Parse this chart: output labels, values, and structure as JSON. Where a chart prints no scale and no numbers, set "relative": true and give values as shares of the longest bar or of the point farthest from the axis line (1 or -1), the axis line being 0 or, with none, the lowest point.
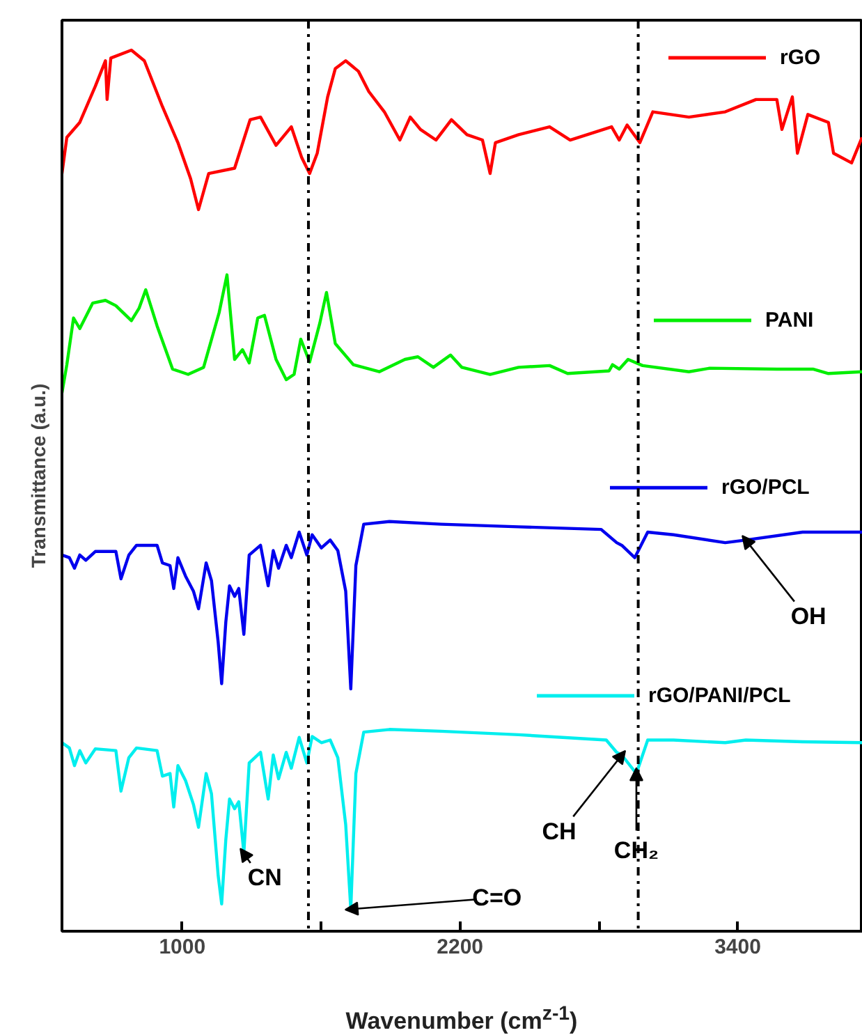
{
  "chart_data": {
    "type": "line",
    "relative": true,
    "xlabel": "Wavenumber (cm$^{z-1}$)",
    "ylabel": "Transmittance (a.u.)",
    "xlim": [
      480,
      3940
    ],
    "xticks": [
      1000,
      {
        "value": 1600,
        "label": null
      },
      2200,
      {
        "value": 2800,
        "label": null
      },
      3400
    ],
    "grid": false,
    "line_style": "solid",
    "marker": "none",
    "ref_lines": [
      {
        "axis": "x",
        "value": 1545,
        "label": null,
        "color": "#000000",
        "line_style": "dashdot"
      },
      {
        "axis": "x",
        "value": 2970,
        "label": null,
        "color": "#000000",
        "line_style": "dashdot"
      }
    ],
    "legend": "right",
    "annotations": [
      {
        "text": "CN",
        "x": 1266,
        "y": 0.089
      },
      {
        "text": "C=O",
        "x": 1728,
        "y": 0.025
      },
      {
        "text": "CH",
        "x": 2899,
        "y": 0.2
      },
      {
        "text": "CH₂",
        "x": 2962,
        "y": 0.179
      },
      {
        "text": "OH",
        "x": 3435,
        "y": 0.444
      }
    ],
    "series": [
      {
        "name": "rGO",
        "color": "#ff0000",
        "x": [
          480,
          501,
          557,
          624,
          668,
          675,
          691,
          780,
          836,
          914,
          981,
          1036,
          1070,
          1114,
          1226,
          1293,
          1338,
          1405,
          1471,
          1516,
          1550,
          1583,
          1628,
          1661,
          1706,
          1761,
          1806,
          1873,
          1940,
          1985,
          2029,
          2096,
          2163,
          2230,
          2297,
          2330,
          2353,
          2453,
          2587,
          2676,
          2855,
          2888,
          2922,
          2977,
          3033,
          3189,
          3346,
          3479,
          3569,
          3591,
          3636,
          3658,
          3703,
          3792,
          3814,
          3892,
          3937
        ],
        "values": [
          0.86,
          0.901,
          0.918,
          0.959,
          0.988,
          0.944,
          0.991,
          1.0,
          0.988,
          0.936,
          0.895,
          0.854,
          0.819,
          0.86,
          0.866,
          0.921,
          0.924,
          0.892,
          0.913,
          0.878,
          0.86,
          0.883,
          0.947,
          0.979,
          0.988,
          0.976,
          0.953,
          0.93,
          0.898,
          0.924,
          0.91,
          0.898,
          0.921,
          0.904,
          0.898,
          0.86,
          0.895,
          0.904,
          0.913,
          0.898,
          0.913,
          0.898,
          0.915,
          0.895,
          0.93,
          0.924,
          0.93,
          0.944,
          0.944,
          0.91,
          0.947,
          0.883,
          0.927,
          0.918,
          0.883,
          0.872,
          0.901
        ]
      },
      {
        "name": "PANI",
        "color": "#00ee00",
        "x": [
          480,
          501,
          530,
          557,
          613,
          668,
          713,
          780,
          813,
          842,
          891,
          958,
          1025,
          1092,
          1159,
          1193,
          1226,
          1260,
          1289,
          1326,
          1355,
          1405,
          1449,
          1483,
          1512,
          1550,
          1594,
          1623,
          1661,
          1739,
          1851,
          1962,
          2018,
          2085,
          2159,
          2208,
          2330,
          2453,
          2587,
          2665,
          2844,
          2859,
          2888,
          2926,
          2989,
          3189,
          3279,
          3569,
          3725,
          3792,
          3937
        ],
        "values": [
          0.611,
          0.643,
          0.696,
          0.684,
          0.713,
          0.716,
          0.71,
          0.693,
          0.707,
          0.728,
          0.687,
          0.638,
          0.632,
          0.64,
          0.702,
          0.745,
          0.649,
          0.66,
          0.645,
          0.696,
          0.699,
          0.649,
          0.626,
          0.632,
          0.672,
          0.646,
          0.69,
          0.725,
          0.667,
          0.643,
          0.635,
          0.649,
          0.652,
          0.64,
          0.654,
          0.64,
          0.632,
          0.64,
          0.642,
          0.633,
          0.636,
          0.643,
          0.638,
          0.649,
          0.642,
          0.635,
          0.639,
          0.638,
          0.638,
          0.633,
          0.635
        ]
      },
      {
        "name": "rGO/PCL",
        "color": "#0000ee",
        "x": [
          480,
          512,
          534,
          557,
          583,
          624,
          713,
          735,
          769,
          802,
          891,
          914,
          947,
          963,
          981,
          1014,
          1048,
          1070,
          1103,
          1126,
          1155,
          1170,
          1188,
          1204,
          1226,
          1244,
          1266,
          1289,
          1338,
          1371,
          1393,
          1416,
          1449,
          1471,
          1505,
          1538,
          1561,
          1601,
          1639,
          1672,
          1706,
          1728,
          1750,
          1784,
          1895,
          2118,
          2453,
          2810,
          2877,
          2899,
          2955,
          3011,
          3122,
          3346,
          3435,
          3680,
          3937
        ],
        "values": [
          0.427,
          0.424,
          0.412,
          0.427,
          0.421,
          0.431,
          0.431,
          0.4,
          0.427,
          0.438,
          0.438,
          0.418,
          0.415,
          0.389,
          0.424,
          0.403,
          0.386,
          0.366,
          0.418,
          0.398,
          0.328,
          0.281,
          0.351,
          0.392,
          0.38,
          0.389,
          0.337,
          0.427,
          0.438,
          0.392,
          0.432,
          0.412,
          0.438,
          0.424,
          0.453,
          0.427,
          0.45,
          0.435,
          0.444,
          0.432,
          0.386,
          0.275,
          0.415,
          0.462,
          0.465,
          0.462,
          0.459,
          0.456,
          0.441,
          0.438,
          0.424,
          0.453,
          0.45,
          0.441,
          0.444,
          0.453,
          0.453
        ]
      },
      {
        "name": "rGO/PANI/PCL",
        "color": "#00eeee",
        "x": [
          480,
          512,
          534,
          557,
          583,
          624,
          713,
          735,
          769,
          802,
          891,
          914,
          947,
          963,
          981,
          1014,
          1048,
          1070,
          1103,
          1126,
          1155,
          1170,
          1188,
          1204,
          1226,
          1244,
          1266,
          1289,
          1338,
          1371,
          1393,
          1416,
          1449,
          1471,
          1505,
          1538,
          1561,
          1601,
          1639,
          1672,
          1706,
          1728,
          1750,
          1784,
          1895,
          2118,
          2453,
          2832,
          2877,
          2899,
          2962,
          3011,
          3122,
          3346,
          3435,
          3680,
          3937
        ],
        "values": [
          0.214,
          0.208,
          0.188,
          0.205,
          0.191,
          0.207,
          0.205,
          0.159,
          0.197,
          0.208,
          0.205,
          0.176,
          0.179,
          0.141,
          0.188,
          0.171,
          0.144,
          0.118,
          0.179,
          0.156,
          0.063,
          0.031,
          0.104,
          0.15,
          0.139,
          0.147,
          0.089,
          0.191,
          0.203,
          0.15,
          0.2,
          0.173,
          0.203,
          0.185,
          0.22,
          0.191,
          0.221,
          0.214,
          0.217,
          0.197,
          0.121,
          0.025,
          0.179,
          0.226,
          0.229,
          0.227,
          0.223,
          0.217,
          0.203,
          0.2,
          0.179,
          0.217,
          0.217,
          0.214,
          0.217,
          0.215,
          0.214
        ]
      }
    ]
  }
}
